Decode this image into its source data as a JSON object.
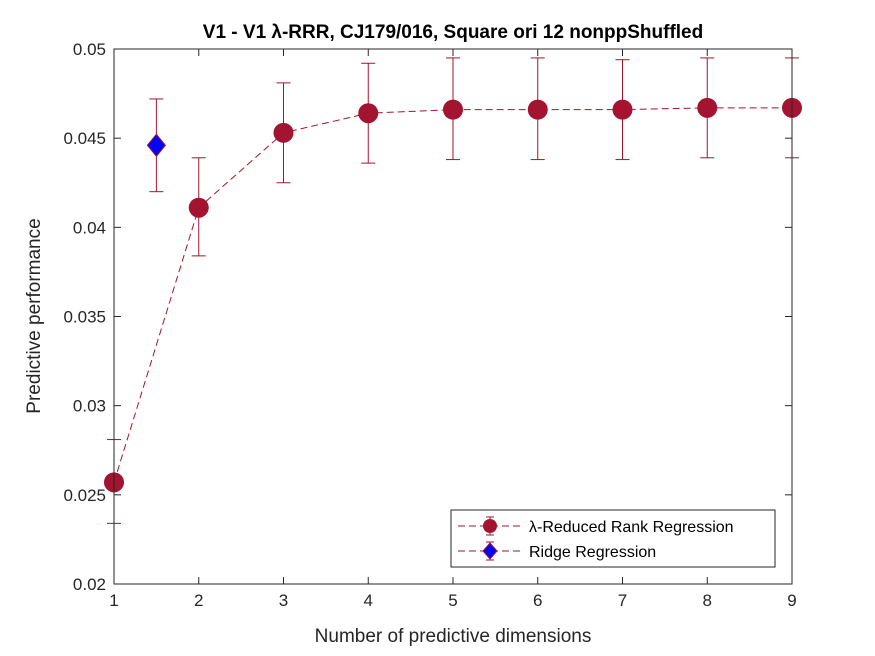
{
  "chart_data": {
    "type": "scatter",
    "title": "V1 - V1 λ-RRR, CJ179/016, Square ori 12 nonppShuffled",
    "xlabel": "Number of predictive dimensions",
    "ylabel": "Predictive performance",
    "xlim": [
      1,
      9
    ],
    "ylim": [
      0.02,
      0.05
    ],
    "xticks": [
      "1",
      "2",
      "3",
      "4",
      "5",
      "6",
      "7",
      "8",
      "9"
    ],
    "yticks": [
      "0.02",
      "0.025",
      "0.03",
      "0.035",
      "0.04",
      "0.045",
      "0.05"
    ],
    "grid": false,
    "legend_position": "bottom-right",
    "series": [
      {
        "name": "λ-Reduced Rank Regression",
        "color": "#A2142F",
        "marker": "circle",
        "line": "dashed",
        "x": [
          1,
          2,
          3,
          4,
          5,
          6,
          7,
          8,
          9
        ],
        "y": [
          0.0257,
          0.0411,
          0.0453,
          0.0464,
          0.0466,
          0.0466,
          0.0466,
          0.0467,
          0.0467
        ],
        "err_low": [
          0.0234,
          0.0384,
          0.0425,
          0.0436,
          0.0438,
          0.0438,
          0.0438,
          0.0439,
          0.0439
        ],
        "err_high": [
          0.0281,
          0.0439,
          0.0481,
          0.0492,
          0.0495,
          0.0495,
          0.0494,
          0.0495,
          0.0495
        ]
      },
      {
        "name": "Ridge Regression",
        "color": "#0000FF",
        "edge_color": "#A2142F",
        "marker": "diamond",
        "line": "dashed",
        "x": [
          1.5
        ],
        "y": [
          0.0446
        ],
        "err_low": [
          0.042
        ],
        "err_high": [
          0.0472
        ]
      }
    ]
  }
}
